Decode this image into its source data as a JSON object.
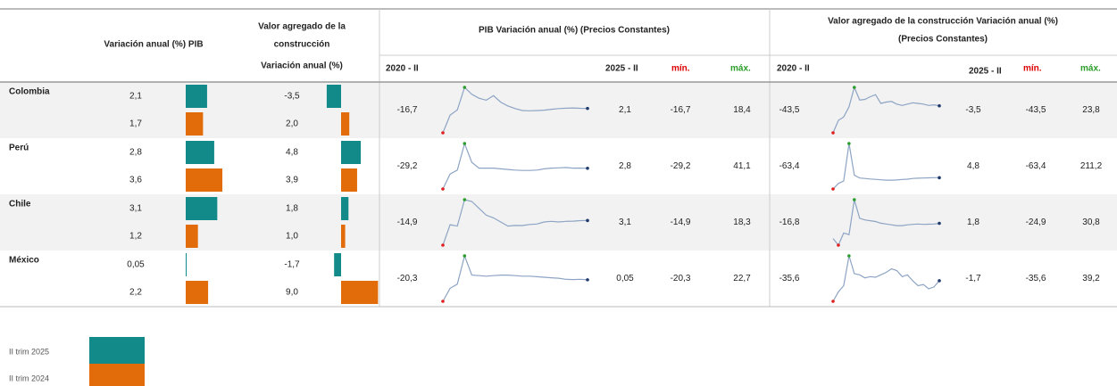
{
  "header": {
    "pib": "Variación anual (%) PIB",
    "va_title_1": "Valor agregado de la",
    "va_title_2": "construcción",
    "va_sub": "Variación anual (%)",
    "pib_spark": "PIB Variación anual (%) (Precios Constantes)",
    "va_spark_1": "Valor agregado de la construcción  Variación anual (%)",
    "va_spark_2": "(Precios Constantes)",
    "start": "2020 - II",
    "end": "2025 - II",
    "min": "mín.",
    "max": "máx."
  },
  "legend": [
    {
      "name": "II trim 2025",
      "color": "#138a8a"
    },
    {
      "name": "II trim 2024",
      "color": "#e36c0a"
    }
  ],
  "rows": [
    {
      "country": "Colombia",
      "pib": [
        2.1,
        1.7
      ],
      "pib_labels": [
        "2,1",
        "1,7"
      ],
      "va": [
        -3.5,
        2.0
      ],
      "va_labels": [
        "-3,5",
        "2,0"
      ],
      "pib_spark": {
        "values": [
          -16.7,
          -3,
          1,
          18.4,
          13,
          10,
          8.5,
          12,
          7,
          4,
          2,
          0.5,
          0.3,
          0.5,
          0.8,
          1.5,
          2,
          2.3,
          2.5,
          2.2,
          2.1
        ],
        "start_label": "-16,7",
        "end_label": "2,1",
        "min_label": "-16,7",
        "max_label": "18,4"
      },
      "va_spark": {
        "values": [
          -43.5,
          -25,
          -20,
          -5,
          23.8,
          5,
          6,
          10,
          13,
          0,
          2,
          3,
          -1,
          -3,
          -1,
          1,
          0,
          -1,
          -3,
          -2,
          -3.5
        ],
        "start_label": "-43,5",
        "end_label": "-3,5",
        "min_label": "-43,5",
        "max_label": "23,8"
      }
    },
    {
      "country": "Perú",
      "pib": [
        2.8,
        3.6
      ],
      "pib_labels": [
        "2,8",
        "3,6"
      ],
      "va": [
        4.8,
        3.9
      ],
      "va_labels": [
        "4,8",
        "3,9"
      ],
      "pib_spark": {
        "values": [
          -29.2,
          -6,
          0,
          41.1,
          12,
          3,
          3,
          3,
          2,
          1,
          0,
          -0.5,
          -0.5,
          0,
          2,
          3,
          3.5,
          4,
          3,
          3.2,
          2.8
        ],
        "start_label": "-29,2",
        "end_label": "2,8",
        "min_label": "-29,2",
        "max_label": "41,1"
      },
      "va_spark": {
        "values": [
          -63.4,
          -30,
          -15,
          211.2,
          20,
          3,
          0,
          -3,
          -5,
          -8,
          -10,
          -10,
          -9,
          -6,
          -4,
          0,
          2,
          3,
          4,
          5,
          4.8
        ],
        "start_label": "-63,4",
        "end_label": "4,8",
        "min_label": "-63,4",
        "max_label": "211,2"
      }
    },
    {
      "country": "Chile",
      "pib": [
        3.1,
        1.2
      ],
      "pib_labels": [
        "3,1",
        "1,2"
      ],
      "va": [
        1.8,
        1.0
      ],
      "va_labels": [
        "1,8",
        "1,0"
      ],
      "pib_spark": {
        "values": [
          -14.9,
          0,
          -1,
          18.3,
          17,
          12,
          7,
          5,
          2,
          -1,
          -0.5,
          -0.6,
          0.2,
          0.5,
          2,
          2.5,
          2,
          2.5,
          2.6,
          3,
          3.1
        ],
        "start_label": "-14,9",
        "end_label": "3,1",
        "min_label": "-14,9",
        "max_label": "18,3"
      },
      "va_spark": {
        "values": [
          -16.8,
          -24.9,
          -10,
          -12,
          30.8,
          8,
          6,
          5,
          4,
          2,
          1,
          0,
          -1,
          -1,
          0,
          0.5,
          1,
          0.5,
          0.8,
          1,
          1.8
        ],
        "start_label": "-16,8",
        "end_label": "1,8",
        "min_label": "-24,9",
        "max_label": "30,8"
      }
    },
    {
      "country": "México",
      "pib": [
        0.05,
        2.2
      ],
      "pib_labels": [
        "0,05",
        "2,2"
      ],
      "va": [
        -1.7,
        9.0
      ],
      "va_labels": [
        "-1,7",
        "9,0"
      ],
      "pib_spark": {
        "values": [
          -20.3,
          -8,
          -4,
          22.7,
          4.5,
          4,
          3.5,
          4,
          4.5,
          4.5,
          4,
          3.5,
          3.5,
          3,
          2.5,
          2,
          1.5,
          0.5,
          0.3,
          0.5,
          0.05
        ],
        "start_label": "-20,3",
        "end_label": "0,05",
        "min_label": "-20,3",
        "max_label": "22,7"
      },
      "va_spark": {
        "values": [
          -35.6,
          -20,
          -10,
          39.2,
          10,
          8,
          3,
          5,
          4,
          8,
          12,
          18,
          15,
          5,
          8,
          -2,
          -10,
          -8,
          -15,
          -12,
          -1.7
        ],
        "start_label": "-35,6",
        "end_label": "-1,7",
        "min_label": "-35,6",
        "max_label": "39,2"
      }
    }
  ]
}
